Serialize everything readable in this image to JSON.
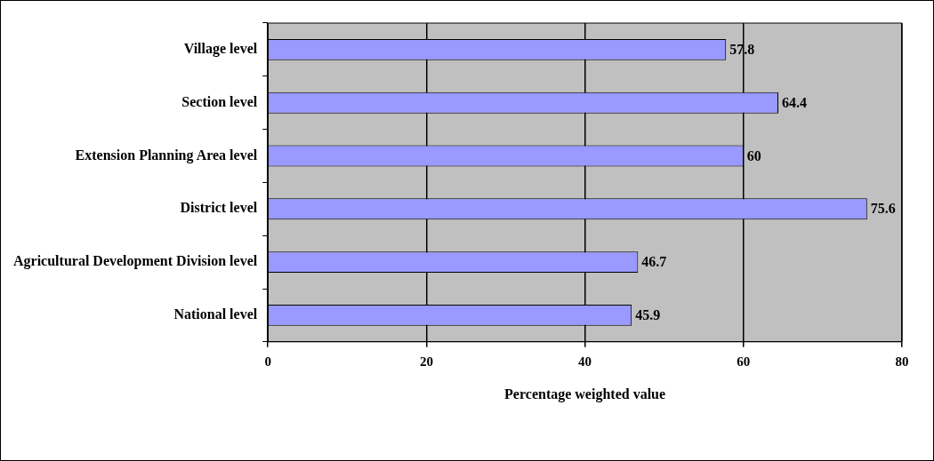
{
  "chart_data": {
    "type": "bar",
    "orientation": "horizontal",
    "xlabel": "Percentage weighted value",
    "categories": [
      "Village level",
      "Section level",
      "Extension Planning Area level",
      "District level",
      "Agricultural Development Division level",
      "National level"
    ],
    "values": [
      57.8,
      64.4,
      60,
      75.6,
      46.7,
      45.9
    ],
    "color": "#9999ff",
    "xlim": [
      0,
      80
    ],
    "xticks": [
      0,
      20,
      40,
      60,
      80
    ],
    "grid": "x",
    "legend": false,
    "data_labels": true
  }
}
